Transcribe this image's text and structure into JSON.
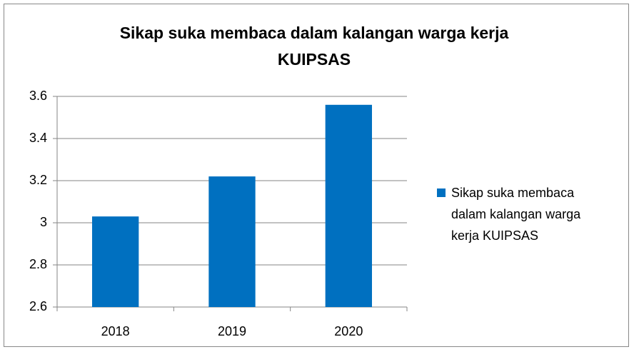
{
  "chart_data": {
    "type": "bar",
    "title": "Sikap suka membaca dalam kalangan warga kerja KUIPSAS",
    "categories": [
      "2018",
      "2019",
      "2020"
    ],
    "series": [
      {
        "name": "Sikap suka membaca dalam kalangan warga kerja KUIPSAS",
        "color": "#0070c0",
        "values": [
          3.03,
          3.22,
          3.56
        ]
      }
    ],
    "ylim": [
      2.6,
      3.6
    ],
    "yticks": [
      2.6,
      2.8,
      3,
      3.2,
      3.4,
      3.6
    ],
    "grid": true,
    "legend": "right"
  }
}
